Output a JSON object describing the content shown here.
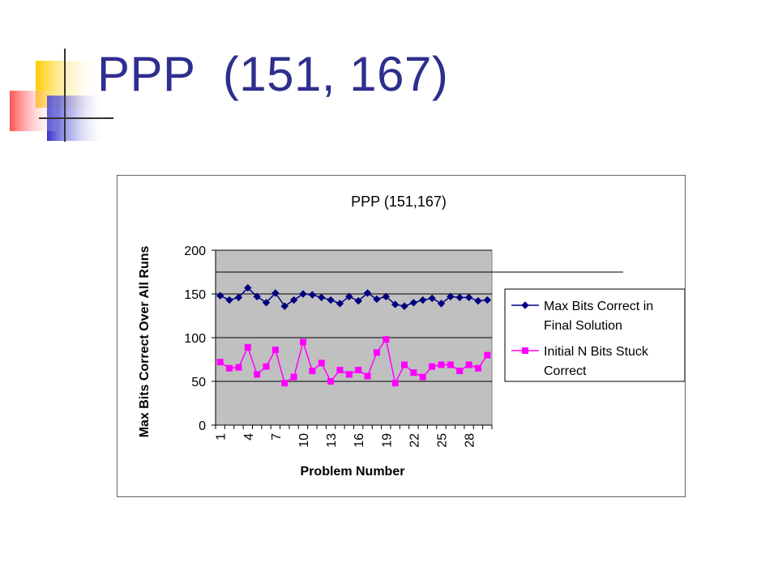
{
  "slide": {
    "title": "PPP  (151, 167)",
    "colors": {
      "title": "#2e2e8f",
      "deco_yellow": "#ffcc00",
      "deco_blue": "#3333cc",
      "deco_red": "#ff4444"
    }
  },
  "chart_data": {
    "type": "line",
    "title": "PPP (151,167)",
    "xlabel": "Problem Number",
    "ylabel": "Max Bits Correct Over All Runs",
    "ylim": [
      0,
      200
    ],
    "yticks": [
      0,
      50,
      100,
      150,
      200
    ],
    "x": [
      1,
      2,
      3,
      4,
      5,
      6,
      7,
      8,
      9,
      10,
      11,
      12,
      13,
      14,
      15,
      16,
      17,
      18,
      19,
      20,
      21,
      22,
      23,
      24,
      25,
      26,
      27,
      28,
      29,
      30
    ],
    "xtick_labels": [
      "1",
      "4",
      "7",
      "10",
      "13",
      "16",
      "19",
      "22",
      "25",
      "28"
    ],
    "plot_background": "#c0c0c0",
    "grid": true,
    "legend_position": "right",
    "reference_line": 175,
    "series": [
      {
        "name": "Max Bits Correct in Final Solution",
        "color": "#000080",
        "marker": "diamond",
        "values": [
          148,
          143,
          146,
          157,
          147,
          140,
          151,
          136,
          143,
          150,
          149,
          146,
          143,
          139,
          147,
          142,
          151,
          144,
          147,
          138,
          136,
          140,
          143,
          145,
          139,
          147,
          146,
          146,
          142,
          143
        ]
      },
      {
        "name": "Initial N Bits Stuck Correct",
        "color": "#ff00ff",
        "marker": "square",
        "values": [
          72,
          65,
          66,
          89,
          58,
          67,
          86,
          48,
          55,
          95,
          62,
          71,
          50,
          63,
          58,
          63,
          56,
          83,
          98,
          48,
          69,
          60,
          55,
          67,
          69,
          69,
          62,
          69,
          65,
          80
        ]
      }
    ]
  }
}
